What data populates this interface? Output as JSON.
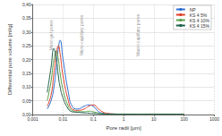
{
  "chart_data": {
    "type": "line",
    "x_label": "Pore radii [µm]",
    "y_label": "Differential pore volume [ml/g]",
    "log": "x",
    "grid": true,
    "legend": "top-right",
    "xlim": [
      0.001,
      1000
    ],
    "xticks": [
      {
        "value": 0.001,
        "label": "0,001"
      },
      {
        "value": 0.01,
        "label": "0,01"
      },
      {
        "value": 0.1,
        "label": "0,1"
      },
      1,
      10,
      100,
      1000
    ],
    "ylim": [
      0,
      0.4
    ],
    "yticks": [
      {
        "value": 0,
        "label": "0,00"
      },
      {
        "value": 0.05,
        "label": "0,05"
      },
      {
        "value": 0.1,
        "label": "0,10"
      },
      {
        "value": 0.15,
        "label": "0,15"
      },
      {
        "value": 0.2,
        "label": "0,20"
      },
      {
        "value": 0.25,
        "label": "0,25"
      },
      {
        "value": 0.3,
        "label": "0,30"
      },
      {
        "value": 0.35,
        "label": "0,35"
      },
      {
        "value": 0.4,
        "label": "0,40"
      }
    ],
    "x": [
      0.003,
      0.004,
      0.005,
      0.006,
      0.007,
      0.008,
      0.01,
      0.015,
      0.02,
      0.03,
      0.05,
      0.07,
      0.1,
      0.15,
      0.2,
      0.3,
      0.5,
      1,
      2,
      5,
      10,
      50,
      100
    ],
    "series": [
      {
        "name": "NP",
        "color": "#2e6fd0",
        "values": [
          0.02,
          0.05,
          0.1,
          0.17,
          0.24,
          0.27,
          0.2,
          0.08,
          0.03,
          0.02,
          0.03,
          0.035,
          0.03,
          0.01,
          0.005,
          0.003,
          0.002,
          0.001,
          0.001,
          0.001,
          0.001,
          0.001,
          0.001
        ]
      },
      {
        "name": "KS 4 5%",
        "color": "#e0402a",
        "values": [
          0.03,
          0.07,
          0.15,
          0.22,
          0.25,
          0.22,
          0.14,
          0.05,
          0.02,
          0.015,
          0.02,
          0.03,
          0.035,
          0.02,
          0.01,
          0.004,
          0.002,
          0.001,
          0.001,
          0.001,
          0.001,
          0.001,
          0.001
        ]
      },
      {
        "name": "KS 4 10%",
        "color": "#5aa04a",
        "values": [
          0.05,
          0.12,
          0.2,
          0.23,
          0.2,
          0.15,
          0.09,
          0.03,
          0.015,
          0.01,
          0.01,
          0.012,
          0.01,
          0.005,
          0.003,
          0.002,
          0.001,
          0.001,
          0.001,
          0.001,
          0.001,
          0.001,
          0.001
        ]
      },
      {
        "name": "KS 4 15%",
        "color": "#1f5e4a",
        "values": [
          0.08,
          0.17,
          0.24,
          0.2,
          0.14,
          0.1,
          0.06,
          0.02,
          0.01,
          0.008,
          0.006,
          0.005,
          0.004,
          0.003,
          0.002,
          0.001,
          0.001,
          0.001,
          0.001,
          0.001,
          0.001,
          0.001,
          0.001
        ]
      }
    ],
    "annotations": [
      {
        "text": "Meso gel pores",
        "x": 0.004
      },
      {
        "text": "Micro capillary pores",
        "x": 0.04
      },
      {
        "text": "Macro capillary pores",
        "x": 3
      }
    ]
  }
}
